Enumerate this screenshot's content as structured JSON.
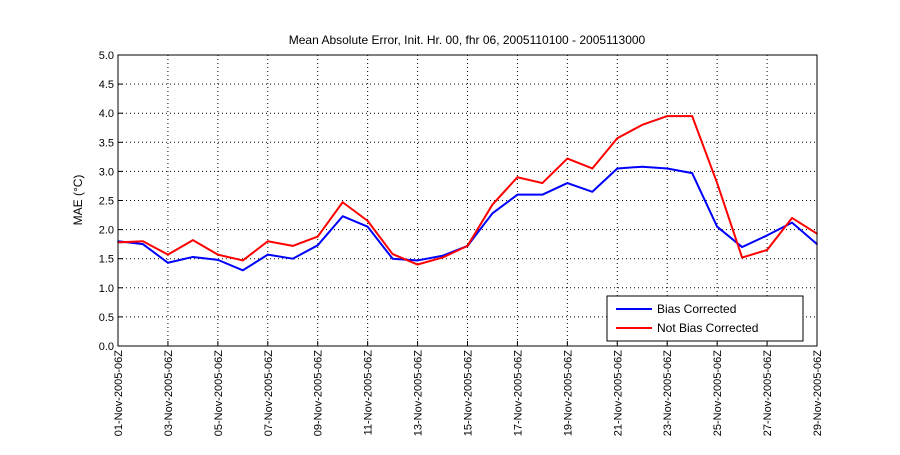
{
  "chart_data": {
    "type": "line",
    "title": "Mean Absolute Error, Init. Hr. 00, fhr 06, 2005110100 - 2005113000",
    "xlabel": "",
    "ylabel": "MAE (°C)",
    "ylim": [
      0,
      5
    ],
    "yticks": [
      "0.0",
      "0.5",
      "1.0",
      "1.5",
      "2.0",
      "2.5",
      "3.0",
      "3.5",
      "4.0",
      "4.5",
      "5.0"
    ],
    "x": [
      1,
      2,
      3,
      4,
      5,
      6,
      7,
      8,
      9,
      10,
      11,
      12,
      13,
      14,
      15,
      16,
      17,
      18,
      19,
      20,
      21,
      22,
      23,
      24,
      25,
      26,
      27,
      28,
      29
    ],
    "xticks": [
      {
        "day": 1,
        "label": "01-Nov-2005-06Z"
      },
      {
        "day": 3,
        "label": "03-Nov-2005-06Z"
      },
      {
        "day": 5,
        "label": "05-Nov-2005-06Z"
      },
      {
        "day": 7,
        "label": "07-Nov-2005-06Z"
      },
      {
        "day": 9,
        "label": "09-Nov-2005-06Z"
      },
      {
        "day": 11,
        "label": "11-Nov-2005-06Z"
      },
      {
        "day": 13,
        "label": "13-Nov-2005-06Z"
      },
      {
        "day": 15,
        "label": "15-Nov-2005-06Z"
      },
      {
        "day": 17,
        "label": "17-Nov-2005-06Z"
      },
      {
        "day": 19,
        "label": "19-Nov-2005-06Z"
      },
      {
        "day": 21,
        "label": "21-Nov-2005-06Z"
      },
      {
        "day": 23,
        "label": "23-Nov-2005-06Z"
      },
      {
        "day": 25,
        "label": "25-Nov-2005-06Z"
      },
      {
        "day": 27,
        "label": "27-Nov-2005-06Z"
      },
      {
        "day": 29,
        "label": "29-Nov-2005-06Z"
      }
    ],
    "grid": true,
    "legend_position": "bottom-right",
    "series": [
      {
        "name": "Bias Corrected",
        "color": "#0000ff",
        "values": [
          1.8,
          1.75,
          1.43,
          1.53,
          1.48,
          1.3,
          1.57,
          1.5,
          1.73,
          2.23,
          2.05,
          1.5,
          1.47,
          1.55,
          1.72,
          2.28,
          2.6,
          2.6,
          2.8,
          2.65,
          3.05,
          3.08,
          3.05,
          2.97,
          2.05,
          1.7,
          1.9,
          2.12,
          1.75
        ]
      },
      {
        "name": "Not Bias Corrected",
        "color": "#ff0000",
        "values": [
          1.78,
          1.8,
          1.57,
          1.82,
          1.57,
          1.47,
          1.8,
          1.72,
          1.88,
          2.47,
          2.15,
          1.58,
          1.4,
          1.52,
          1.72,
          2.43,
          2.9,
          2.8,
          3.22,
          3.05,
          3.57,
          3.8,
          3.95,
          3.95,
          2.8,
          1.52,
          1.65,
          2.2,
          1.93
        ]
      }
    ]
  }
}
